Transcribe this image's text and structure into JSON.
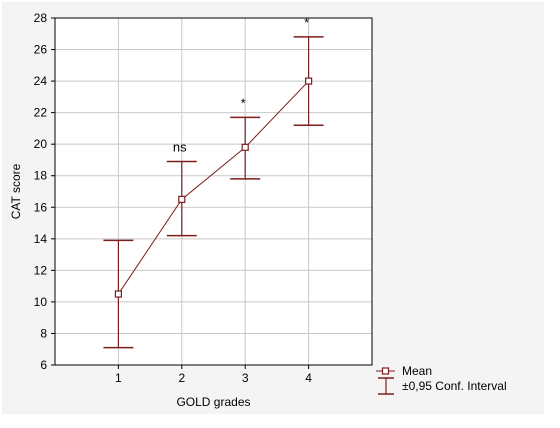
{
  "chart_data": {
    "type": "line",
    "title": "",
    "xlabel": "GOLD grades",
    "ylabel": "CAT score",
    "categories": [
      "1",
      "2",
      "3",
      "4"
    ],
    "xlim": [
      0,
      5
    ],
    "ylim": [
      6,
      28
    ],
    "yticks": [
      6,
      8,
      10,
      12,
      14,
      16,
      18,
      20,
      22,
      24,
      26,
      28
    ],
    "grid": true,
    "legend_position": "bottom-right, outside plot area",
    "series": [
      {
        "name": "Mean",
        "x": [
          1,
          2,
          3,
          4
        ],
        "values": [
          10.5,
          16.5,
          19.8,
          24.0
        ],
        "ci_lower": [
          7.1,
          14.2,
          17.8,
          21.2
        ],
        "ci_upper": [
          13.9,
          18.9,
          21.7,
          26.8
        ]
      }
    ],
    "annotations": [
      {
        "x": 2,
        "text": "ns"
      },
      {
        "x": 3,
        "text": "*"
      },
      {
        "x": 4,
        "text": "*"
      }
    ],
    "legend": [
      "Mean",
      "±0,95 Conf. Interval"
    ],
    "colors": {
      "series": "#7a1e1e",
      "marker_fill": "#ffffff",
      "grid": "#c8c8c8",
      "plot_bg": "#ffffff",
      "panel_bg": "#f4f4f4"
    }
  }
}
